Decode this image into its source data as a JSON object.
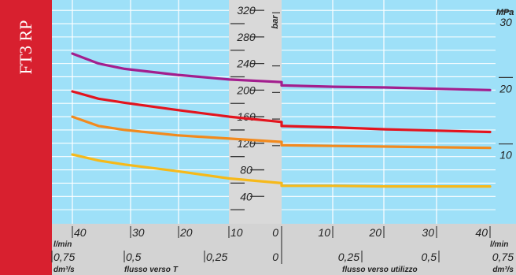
{
  "side_title": "FT3 RP",
  "colors": {
    "red_band": "#d8202f",
    "sky": "#9ee0f8",
    "center_strip": "#d9d9d9",
    "bottom_band": "#d3d3d3",
    "grid": "#ffffff",
    "purple": "#a31e8e",
    "red": "#e3141e",
    "orange": "#f28a1e",
    "yellow": "#f6b91a"
  },
  "chart_data": {
    "type": "line",
    "title": "",
    "y_axis": {
      "unit_label": "bar",
      "ticks": [
        40,
        80,
        120,
        160,
        200,
        240,
        280,
        320
      ],
      "range": [
        0,
        340
      ]
    },
    "y2_axis": {
      "unit_label": "MPa",
      "ticks": [
        "10",
        "20",
        "30"
      ]
    },
    "x_axis_lmin": {
      "unit_label": "l/min",
      "left_ticks": [
        "40",
        "30",
        "20",
        "10",
        "0"
      ],
      "right_ticks": [
        "10",
        "20",
        "30",
        "40"
      ]
    },
    "x_axis_dm3s": {
      "unit_label": "dm³/s",
      "left_ticks": [
        "0,75",
        "0,5",
        "0,25",
        "0"
      ],
      "right_ticks": [
        "0,25",
        "0,5",
        "0,75"
      ]
    },
    "direction_labels": {
      "left": "flusso verso T",
      "right": "flusso verso utilizzo"
    },
    "series": [
      {
        "color": "purple",
        "left": [
          [
            40,
            255
          ],
          [
            35,
            240
          ],
          [
            30,
            232
          ],
          [
            20,
            223
          ],
          [
            10,
            216
          ],
          [
            0,
            212
          ]
        ],
        "right": [
          [
            0,
            207
          ],
          [
            10,
            205
          ],
          [
            20,
            204
          ],
          [
            30,
            202
          ],
          [
            40,
            200
          ]
        ]
      },
      {
        "color": "red",
        "left": [
          [
            40,
            198
          ],
          [
            35,
            187
          ],
          [
            30,
            181
          ],
          [
            20,
            170
          ],
          [
            10,
            160
          ],
          [
            0,
            152
          ]
        ],
        "right": [
          [
            0,
            146
          ],
          [
            10,
            144
          ],
          [
            20,
            141
          ],
          [
            30,
            139
          ],
          [
            40,
            137
          ]
        ]
      },
      {
        "color": "orange",
        "left": [
          [
            40,
            160
          ],
          [
            35,
            146
          ],
          [
            30,
            140
          ],
          [
            20,
            132
          ],
          [
            10,
            127
          ],
          [
            0,
            122
          ]
        ],
        "right": [
          [
            0,
            117
          ],
          [
            10,
            116
          ],
          [
            20,
            115
          ],
          [
            30,
            114
          ],
          [
            40,
            113
          ]
        ]
      },
      {
        "color": "yellow",
        "left": [
          [
            40,
            103
          ],
          [
            35,
            94
          ],
          [
            30,
            88
          ],
          [
            20,
            78
          ],
          [
            10,
            67
          ],
          [
            0,
            60
          ]
        ],
        "right": [
          [
            0,
            56
          ],
          [
            10,
            56
          ],
          [
            20,
            55
          ],
          [
            30,
            55
          ],
          [
            40,
            55
          ]
        ]
      }
    ]
  }
}
